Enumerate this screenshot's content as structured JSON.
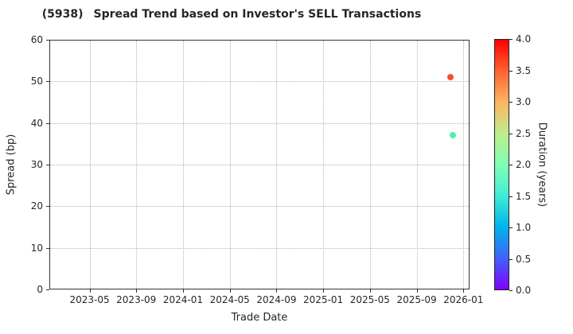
{
  "title": {
    "ticker": "(5938)",
    "text": "Spread Trend based on Investor's SELL Transactions"
  },
  "chart_data": {
    "type": "scatter",
    "title": "(5938) Spread Trend based on Investor's SELL Transactions",
    "xlabel": "Trade Date",
    "ylabel": "Spread (bp)",
    "xlim": [
      "2023-01-18",
      "2026-01-17"
    ],
    "ylim": [
      0,
      60
    ],
    "x_ticks": [
      "2023-05",
      "2023-09",
      "2024-01",
      "2024-05",
      "2024-09",
      "2025-01",
      "2025-05",
      "2025-09",
      "2026-01"
    ],
    "y_ticks": [
      0,
      10,
      20,
      30,
      40,
      50,
      60
    ],
    "grid": true,
    "grid_style": "dotted",
    "legend_position": "none",
    "points": [
      {
        "date": "2025-11-28",
        "spread_bp": 51,
        "duration_years": 3.6,
        "color": "#f4502f"
      },
      {
        "date": "2025-12-04",
        "spread_bp": 37,
        "duration_years": 1.9,
        "color": "#55eda8"
      }
    ],
    "colorbar": {
      "label": "Duration (years)",
      "range": [
        0.0,
        4.0
      ],
      "tick_labels": [
        "0.0",
        "0.5",
        "1.0",
        "1.5",
        "2.0",
        "2.5",
        "3.0",
        "3.5",
        "4.0"
      ],
      "colormap": "rainbow",
      "colormap_stops": [
        "#8000ff",
        "#4062fa",
        "#00b4ec",
        "#40ecd4",
        "#80ffb4",
        "#bfec8e",
        "#ffb462",
        "#ff6232",
        "#ff0000"
      ]
    },
    "colors": {
      "spine": "#333333",
      "grid": "#b3b3b3",
      "text": "#262626",
      "background": "#ffffff"
    }
  }
}
